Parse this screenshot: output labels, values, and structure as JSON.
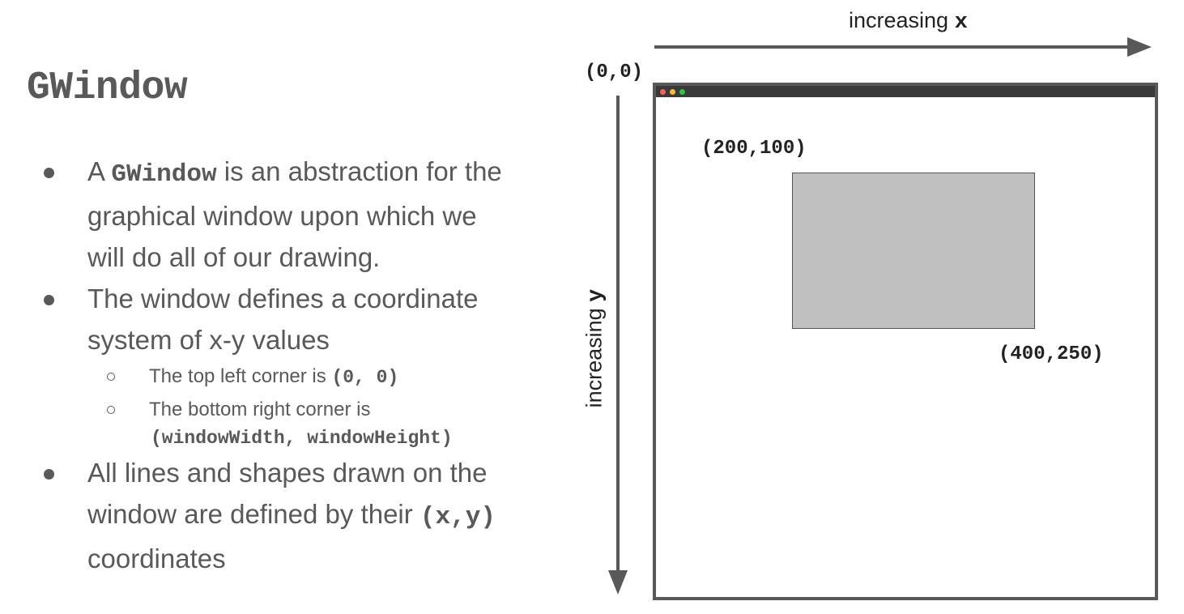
{
  "title": "GWindow",
  "bullets": {
    "b1_pre": "A ",
    "b1_code": "GWindow",
    "b1_post": " is an abstraction for the",
    "b1_line2": "graphical window upon which we",
    "b1_line3": "will do all of our drawing.",
    "b2_line1": "The window defines a coordinate",
    "b2_line2": "system of x-y values",
    "sub1_text": "The top left corner is ",
    "sub1_code": "(0, 0)",
    "sub2_text": "The bottom right corner is",
    "sub2_code": "(windowWidth, windowHeight)",
    "b3_line1": "All lines and shapes drawn on the",
    "b3_line2_pre": "window are defined by their ",
    "b3_line2_code": "(x,y)",
    "b3_line3": "coordinates"
  },
  "diagram": {
    "x_label_text": "increasing ",
    "x_label_var": "x",
    "y_label_text": "increasing ",
    "y_label_var": "y",
    "origin": "(0,0)",
    "rect_top_left": "(200,100)",
    "rect_bottom_right": "(400,250)",
    "titlebar_dot_colors": [
      "#ff5f57",
      "#febc2e",
      "#28c840"
    ]
  }
}
